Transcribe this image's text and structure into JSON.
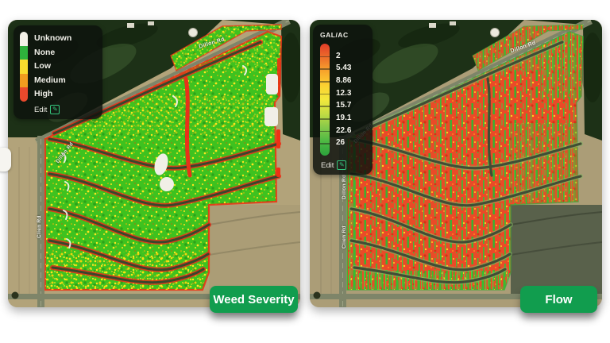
{
  "panels": {
    "left": {
      "button_label": "Weed Severity",
      "legend": {
        "items": [
          {
            "label": "Unknown",
            "color": "#f3f1e8"
          },
          {
            "label": "None",
            "color": "#2eb13c"
          },
          {
            "label": "Low",
            "color": "#f9dc2e"
          },
          {
            "label": "Medium",
            "color": "#f19c1f"
          },
          {
            "label": "High",
            "color": "#e9492c"
          }
        ],
        "edit_label": "Edit",
        "edit_icon": "✎"
      },
      "road_labels": {
        "top": "Dillon Rd",
        "bend": "Dillon Rd",
        "side": "Clien Rd"
      }
    },
    "right": {
      "button_label": "Flow",
      "legend": {
        "title": "GAL/AC",
        "tick_values": [
          "2",
          "5.43",
          "8.86",
          "12.3",
          "15.7",
          "19.1",
          "22.6",
          "26"
        ],
        "gradient_colors": [
          "#e23d28",
          "#ec6f2b",
          "#f7a62c",
          "#fbd231",
          "#f2e83c",
          "#c3dc43",
          "#84c94a",
          "#4cb843",
          "#2ca33c"
        ],
        "edit_label": "Edit",
        "edit_icon": "✎"
      },
      "road_labels": {
        "top": "Dillon Rd",
        "bend": "Dillon Rd",
        "side_upper": "Dillon Rd",
        "side_lower": "Clien Rd"
      }
    }
  },
  "accent": {
    "button_green": "#119d4e",
    "edit_icon_green": "#35c77e"
  }
}
